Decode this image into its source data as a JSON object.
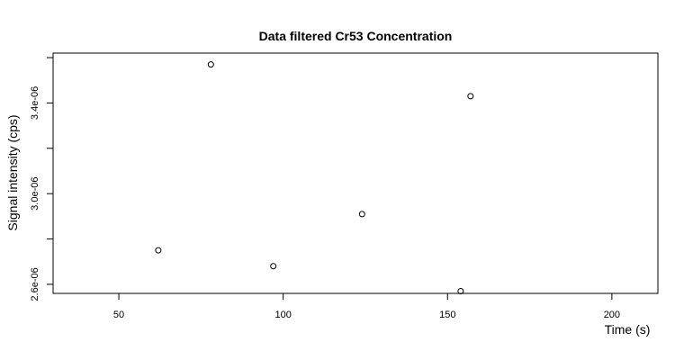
{
  "chart_data": {
    "type": "scatter",
    "title": "Data filtered Cr53 Concentration",
    "xlabel": "Time (s)",
    "ylabel": "Signal intensity (cps)",
    "xlim": [
      30,
      214
    ],
    "ylim": [
      2.56e-06,
      3.62e-06
    ],
    "x_ticks": [
      50,
      100,
      150,
      200
    ],
    "x_tick_labels": [
      "50",
      "100",
      "150",
      "200"
    ],
    "y_ticks": [
      2.6e-06,
      2.8e-06,
      3e-06,
      3.2e-06,
      3.4e-06,
      3.6e-06
    ],
    "y_tick_labels": [
      "2.6e-06",
      "",
      "3.0e-06",
      "",
      "3.4e-06",
      ""
    ],
    "grid": false,
    "marker": "open-circle",
    "x": [
      62,
      78,
      97,
      124,
      154,
      157
    ],
    "y": [
      2.75e-06,
      3.57e-06,
      2.68e-06,
      2.91e-06,
      2.57e-06,
      3.43e-06
    ]
  }
}
